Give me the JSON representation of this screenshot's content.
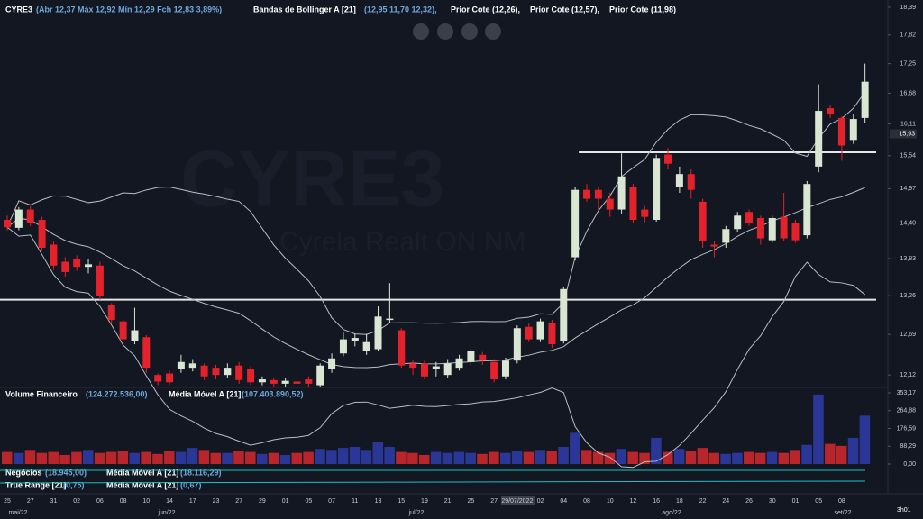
{
  "header": {
    "symbol": "CYRE3",
    "ohlc": "(Abr 12,37 Máx 12,92 Mín 12,29 Fch 12,83 3,89%)",
    "indicator": "Bandas de Bollinger A [21]",
    "indicator_values": "(12,95  11,70 12,32),",
    "prior": [
      "Prior Cote (12,26),",
      "Prior Cote (12,57),",
      "Prior Cote (11,98)"
    ]
  },
  "watermark": {
    "symbol": "CYRE3",
    "name": "Cyrela Realt ON NM"
  },
  "panels": {
    "volume": "Volume Financeiro",
    "volume_value": "(124.272.536,00)",
    "volume_ma": "Média Móvel A [21]",
    "volume_ma_value": "(107.403.890,52)",
    "trades": "Negócios",
    "trades_value": "(18.945,00)",
    "trades_ma": "Média Móvel A [21]",
    "trades_ma_value": "(18.116,29)",
    "tr": "True Range [21]",
    "tr_value": "(0,75)",
    "tr_ma": "Média Móvel A [21]",
    "tr_ma_value": "(0,67)"
  },
  "months": [
    "mai/22",
    "jun/22",
    "jul/22",
    "ago/22",
    "set/22"
  ],
  "clock": "3h01",
  "chart_data": {
    "type": "candlestick",
    "log_scale": true,
    "up_color": "#d8e6d2",
    "down_color": "#e3222b",
    "categories": [
      "25",
      null,
      "27",
      null,
      "31",
      null,
      "02",
      null,
      "06",
      null,
      "08",
      null,
      "10",
      null,
      "14",
      null,
      "17",
      null,
      "23",
      null,
      "27",
      null,
      "29",
      null,
      "01",
      null,
      "05",
      null,
      "07",
      null,
      "11",
      null,
      "13",
      null,
      "15",
      null,
      "19",
      null,
      "21",
      null,
      "25",
      null,
      "27",
      null,
      "29/07/2022",
      null,
      "02",
      null,
      "04",
      null,
      "08",
      null,
      "10",
      null,
      "12",
      null,
      "16",
      null,
      "18",
      null,
      "22",
      null,
      "24",
      null,
      "26",
      null,
      "30",
      null,
      "01",
      null,
      "05",
      null,
      "08",
      null,
      null
    ],
    "open": [
      14.45,
      14.32,
      14.62,
      14.45,
      14.05,
      13.78,
      13.82,
      13.7,
      13.72,
      13.12,
      12.88,
      12.6,
      12.65,
      12.12,
      12.14,
      12.2,
      12.22,
      12.25,
      12.22,
      12.12,
      12.25,
      12.2,
      12.02,
      12.05,
      12.0,
      12.03,
      12.06,
      11.98,
      12.2,
      12.42,
      12.6,
      12.45,
      12.48,
      12.9,
      12.75,
      12.28,
      12.28,
      12.2,
      12.12,
      12.22,
      12.3,
      12.4,
      12.3,
      12.1,
      12.32,
      12.8,
      12.62,
      12.86,
      12.6,
      13.85,
      14.95,
      14.95,
      14.8,
      14.62,
      15.0,
      14.62,
      14.45,
      15.56,
      15.0,
      15.22,
      14.75,
      14.05,
      14.08,
      14.3,
      14.58,
      14.48,
      14.12,
      14.5,
      14.4,
      14.2,
      15.35,
      16.4,
      16.22,
      15.82,
      16.22
    ],
    "high": [
      14.52,
      14.66,
      14.68,
      14.5,
      14.1,
      13.85,
      13.88,
      13.82,
      13.78,
      13.15,
      12.92,
      13.08,
      12.68,
      12.14,
      12.18,
      12.4,
      12.34,
      12.28,
      12.26,
      12.28,
      12.3,
      12.24,
      12.1,
      12.08,
      12.08,
      12.06,
      12.1,
      12.28,
      12.42,
      12.72,
      12.7,
      12.7,
      13.1,
      13.45,
      12.78,
      12.32,
      12.32,
      12.3,
      12.34,
      12.4,
      12.5,
      12.44,
      12.34,
      12.36,
      12.82,
      12.86,
      12.92,
      12.9,
      13.4,
      15.0,
      15.05,
      15.0,
      14.9,
      15.58,
      15.05,
      14.68,
      15.56,
      15.68,
      15.35,
      15.3,
      14.8,
      14.1,
      14.35,
      14.58,
      14.62,
      14.52,
      14.52,
      14.9,
      14.45,
      15.1,
      16.85,
      16.45,
      16.25,
      16.3,
      17.25
    ],
    "low": [
      14.28,
      14.28,
      14.35,
      13.95,
      13.65,
      13.55,
      13.64,
      13.6,
      13.2,
      12.86,
      12.56,
      12.55,
      12.15,
      11.98,
      11.98,
      12.15,
      12.17,
      12.05,
      12.06,
      12.08,
      12.0,
      11.98,
      11.98,
      11.96,
      11.96,
      11.96,
      11.96,
      11.95,
      12.15,
      12.38,
      12.52,
      12.4,
      12.45,
      12.85,
      12.22,
      12.12,
      12.06,
      12.1,
      12.08,
      12.18,
      12.25,
      12.26,
      12.02,
      12.06,
      12.28,
      12.58,
      12.58,
      12.5,
      12.56,
      13.8,
      14.75,
      14.6,
      14.5,
      14.55,
      14.4,
      14.4,
      14.42,
      15.3,
      14.9,
      14.8,
      14.0,
      13.85,
      14.0,
      14.25,
      14.35,
      14.05,
      14.08,
      14.1,
      14.08,
      14.15,
      15.25,
      16.22,
      15.45,
      15.75,
      16.12
    ],
    "close": [
      14.33,
      14.62,
      14.4,
      14.0,
      13.72,
      13.62,
      13.7,
      13.74,
      13.25,
      12.9,
      12.62,
      12.75,
      12.22,
      12.03,
      12.02,
      12.3,
      12.28,
      12.1,
      12.12,
      12.22,
      12.05,
      12.02,
      12.06,
      12.0,
      12.04,
      12.0,
      12.0,
      12.25,
      12.35,
      12.62,
      12.64,
      12.58,
      12.95,
      12.92,
      12.25,
      12.22,
      12.1,
      12.24,
      12.28,
      12.35,
      12.45,
      12.32,
      12.06,
      12.32,
      12.78,
      12.62,
      12.88,
      12.55,
      13.36,
      14.95,
      14.8,
      14.8,
      14.62,
      15.18,
      14.45,
      14.5,
      15.5,
      15.4,
      15.22,
      14.95,
      14.1,
      14.02,
      14.3,
      14.52,
      14.4,
      14.15,
      14.48,
      14.15,
      14.12,
      15.05,
      16.35,
      16.3,
      15.72,
      16.2,
      16.9
    ],
    "ylim": [
      11.95,
      18.54
    ],
    "yticks": [
      {
        "value": 18.39,
        "label": "18,39"
      },
      {
        "value": 17.82,
        "label": "17,82"
      },
      {
        "value": 17.25,
        "label": "17,25"
      },
      {
        "value": 16.68,
        "label": "16,68"
      },
      {
        "value": 16.11,
        "label": "16,11"
      },
      {
        "value": 15.54,
        "label": "15,54"
      },
      {
        "value": 14.97,
        "label": "14,97"
      },
      {
        "value": 14.4,
        "label": "14,40"
      },
      {
        "value": 13.83,
        "label": "13,83"
      },
      {
        "value": 13.26,
        "label": "13,26"
      },
      {
        "value": 12.69,
        "label": "12,69"
      },
      {
        "value": 12.12,
        "label": "12,12"
      }
    ],
    "levels": [
      15.6,
      13.2
    ],
    "price_tag": {
      "value": 15.93,
      "label": "15,93"
    },
    "volume": {
      "values": [
        60,
        55,
        70,
        55,
        60,
        45,
        60,
        70,
        55,
        60,
        65,
        55,
        60,
        50,
        65,
        60,
        80,
        70,
        55,
        55,
        65,
        60,
        50,
        55,
        45,
        55,
        60,
        75,
        70,
        80,
        85,
        70,
        110,
        85,
        60,
        55,
        45,
        60,
        55,
        60,
        55,
        50,
        60,
        55,
        65,
        60,
        70,
        65,
        85,
        155,
        70,
        60,
        55,
        75,
        60,
        55,
        130,
        60,
        75,
        65,
        80,
        55,
        50,
        55,
        60,
        55,
        60,
        55,
        70,
        95,
        345,
        100,
        90,
        130,
        240
      ],
      "up_color": "#2a3796",
      "down_color": "#b8252b",
      "ylim": [
        0,
        380
      ],
      "yticks": [
        {
          "value": 353.17,
          "label": "353,17"
        },
        {
          "value": 264.88,
          "label": "264,88"
        },
        {
          "value": 176.59,
          "label": "176,59"
        },
        {
          "value": 88.29,
          "label": "88,29"
        },
        {
          "value": 0,
          "label": "0,00"
        }
      ]
    }
  }
}
